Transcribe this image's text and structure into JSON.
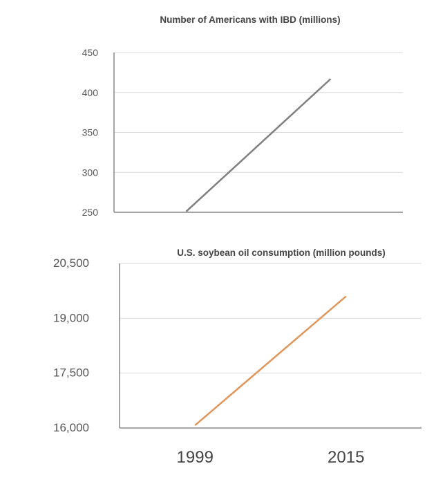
{
  "chart_data": [
    {
      "type": "line",
      "title": "Number of Americans with IBD (millions)",
      "categories": [
        "1999",
        "2015"
      ],
      "series": [
        {
          "name": "Number of Americans with IBD (millions)",
          "values": [
            251,
            417
          ],
          "color": "#7f7f7f"
        }
      ],
      "ylim": [
        250,
        450
      ],
      "yticks": [
        250,
        300,
        350,
        400,
        450
      ],
      "ytick_labels": [
        "250",
        "300",
        "350",
        "400",
        "450"
      ],
      "grid": true
    },
    {
      "type": "line",
      "title": "U.S. soybean oil consumption (million pounds)",
      "categories": [
        "1999",
        "2015"
      ],
      "series": [
        {
          "name": "U.S. soybean oil consumption (million pounds)",
          "values": [
            16075,
            19600
          ],
          "color": "#e0955a"
        }
      ],
      "ylim": [
        16000,
        20500
      ],
      "yticks": [
        16000,
        17500,
        19000,
        20500
      ],
      "ytick_labels": [
        "16,000",
        "17,500",
        "19,000",
        "20,500"
      ],
      "xtick_labels": [
        "1999",
        "2015"
      ],
      "grid": true
    }
  ]
}
